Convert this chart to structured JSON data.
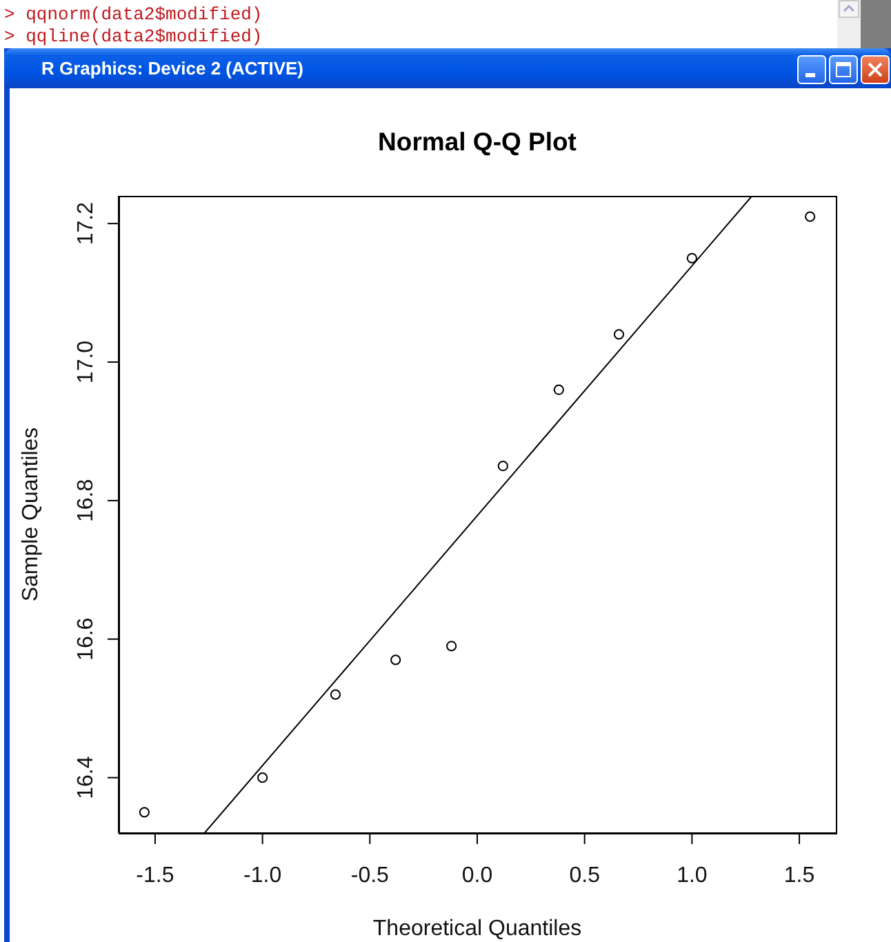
{
  "chart_data": {
    "type": "scatter",
    "title": "Normal Q-Q Plot",
    "xlabel": "Theoretical Quantiles",
    "ylabel": "Sample Quantiles",
    "annotations": [
      "> qqnorm(data2$modified)",
      "> qqline(data2$modified)",
      "R Graphics: Device 2 (ACTIVE)"
    ],
    "series": [
      {
        "color": "#000000",
        "marker": "circle",
        "x": [
          -1.55,
          -1.0,
          -0.66,
          -0.38,
          -0.12,
          0.12,
          0.38,
          0.66,
          1.0,
          1.55
        ],
        "values": [
          16.35,
          16.4,
          16.52,
          16.57,
          16.59,
          16.85,
          16.96,
          17.04,
          17.15,
          17.21
        ]
      },
      {
        "type": "line",
        "color": "#000000",
        "marker": "none",
        "x": [
          -1.27,
          1.28
        ],
        "values": [
          16.32,
          17.24
        ]
      }
    ],
    "xlim": [
      -1.67,
      1.67
    ],
    "xticks": [
      -1.5,
      {
        "value": -1,
        "label": "-1.0"
      },
      -0.5,
      {
        "value": 0,
        "label": "0.0"
      },
      0.5,
      {
        "value": 1,
        "label": "1.0"
      },
      1.5
    ],
    "ylim": [
      16.32,
      17.24
    ],
    "yticks": [
      16.4,
      16.6,
      16.8,
      {
        "value": 17,
        "label": "17.0"
      },
      17.2
    ]
  }
}
